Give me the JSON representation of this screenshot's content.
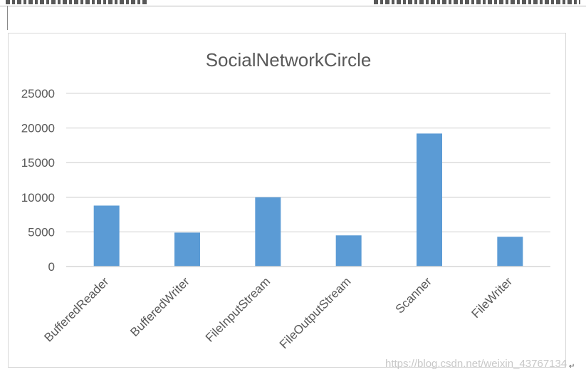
{
  "colors": {
    "bar": "#5b9bd5",
    "grid": "#d9d9d9",
    "text": "#595959"
  },
  "chart_data": {
    "type": "bar",
    "title": "SocialNetworkCircle",
    "xlabel": "",
    "ylabel": "",
    "categories": [
      "BufferedReader",
      "BufferedWriter",
      "FileInputStream",
      "FileOutputStream",
      "Scanner",
      "FileWriter"
    ],
    "values": [
      8800,
      4900,
      10000,
      4500,
      19200,
      4300
    ],
    "ylim": [
      0,
      25000
    ],
    "yticks": [
      "0",
      "5000",
      "10000",
      "15000",
      "20000",
      "25000"
    ],
    "grid": true,
    "legend": "none"
  },
  "watermark": "https://blog.csdn.net/weixin_43767134",
  "return_mark": "↵",
  "icons": [
    "return-mark-icon"
  ]
}
